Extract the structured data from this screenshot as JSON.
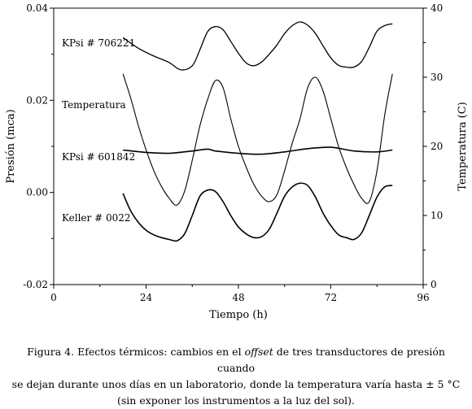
{
  "chart_data": {
    "type": "line",
    "xlabel": "Tiempo (h)",
    "ylabel": "Presión (mca)",
    "y2label": "Temperatura (C)",
    "xlim": [
      0,
      96
    ],
    "ylim": [
      -0.02,
      0.04
    ],
    "y2lim": [
      0,
      40
    ],
    "x_ticks": [
      "0",
      "24",
      "48",
      "72",
      "96"
    ],
    "y_ticks": [
      "-0.02",
      "0.00",
      "0.02",
      "0.04"
    ],
    "y2_ticks": [
      "0",
      "10",
      "20",
      "30",
      "40"
    ],
    "grid": false,
    "series": [
      {
        "name": "KPsi # 706221",
        "axis": "left",
        "color": "#000000",
        "x": [
          18,
          22,
          26,
          30,
          33,
          36,
          38,
          40,
          42,
          44,
          46,
          48,
          50,
          52,
          54,
          56,
          58,
          60,
          62,
          64,
          66,
          68,
          70,
          72,
          74,
          76,
          78,
          80,
          82,
          84,
          86,
          88
        ],
        "y": [
          0.0336,
          0.0313,
          0.0296,
          0.0282,
          0.0266,
          0.0275,
          0.031,
          0.0349,
          0.036,
          0.0353,
          0.0328,
          0.0302,
          0.0281,
          0.0275,
          0.0283,
          0.03,
          0.032,
          0.0345,
          0.0362,
          0.037,
          0.0363,
          0.0345,
          0.0318,
          0.0292,
          0.0276,
          0.0272,
          0.0272,
          0.0284,
          0.0315,
          0.035,
          0.0362,
          0.0366
        ]
      },
      {
        "name": "Temperatura",
        "axis": "right",
        "color": "#000000",
        "x": [
          18,
          20,
          22,
          24,
          26,
          28,
          30,
          32,
          34,
          36,
          38,
          40,
          42,
          44,
          46,
          48,
          50,
          52,
          54,
          56,
          58,
          60,
          62,
          64,
          66,
          68,
          70,
          72,
          74,
          76,
          78,
          80,
          82,
          84,
          86,
          88
        ],
        "y": [
          30.5,
          27.0,
          23.0,
          19.5,
          16.5,
          14.2,
          12.5,
          11.5,
          13.5,
          18.0,
          23.0,
          26.8,
          29.5,
          28.5,
          24.0,
          20.0,
          17.0,
          14.5,
          12.8,
          12.0,
          13.0,
          16.5,
          20.5,
          24.0,
          28.5,
          30.0,
          28.0,
          24.0,
          20.0,
          17.0,
          14.5,
          12.5,
          12.0,
          16.5,
          24.5,
          30.5
        ]
      },
      {
        "name": "KPsi # 601842",
        "axis": "left",
        "color": "#000000",
        "x": [
          18,
          24,
          30,
          36,
          40,
          42,
          48,
          54,
          60,
          66,
          72,
          78,
          84,
          88
        ],
        "y": [
          0.0092,
          0.0087,
          0.0085,
          0.009,
          0.0094,
          0.009,
          0.0085,
          0.0083,
          0.0088,
          0.0095,
          0.0098,
          0.009,
          0.0088,
          0.0092
        ]
      },
      {
        "name": "Keller # 0022",
        "axis": "left",
        "color": "#000000",
        "x": [
          18,
          20,
          22,
          24,
          26,
          28,
          30,
          32,
          34,
          36,
          38,
          40,
          42,
          44,
          46,
          48,
          50,
          52,
          54,
          56,
          58,
          60,
          62,
          64,
          66,
          68,
          70,
          72,
          74,
          76,
          78,
          80,
          82,
          84,
          86,
          88
        ],
        "y": [
          -0.0002,
          -0.004,
          -0.0065,
          -0.0082,
          -0.0092,
          -0.0098,
          -0.0102,
          -0.0105,
          -0.009,
          -0.005,
          -0.0008,
          0.0005,
          0.0002,
          -0.002,
          -0.005,
          -0.0075,
          -0.009,
          -0.0098,
          -0.0096,
          -0.008,
          -0.0045,
          -0.0008,
          0.0012,
          0.002,
          0.0015,
          -0.001,
          -0.0045,
          -0.0072,
          -0.0092,
          -0.0098,
          -0.0102,
          -0.0088,
          -0.005,
          -0.001,
          0.0012,
          0.0015
        ]
      }
    ],
    "annotations": [
      "KPsi # 706221",
      "Temperatura",
      "KPsi # 601842",
      "Keller # 0022"
    ]
  },
  "caption": {
    "line1_pre": "Figura 4. Efectos térmicos: cambios en el ",
    "line1_em": "offset",
    "line1_post": " de tres transductores de presión cuando",
    "line2": "se dejan durante unos días en un laboratorio, donde la temperatura varía hasta ± 5 °C",
    "line3": "(sin exponer los instrumentos a la luz del sol)."
  }
}
